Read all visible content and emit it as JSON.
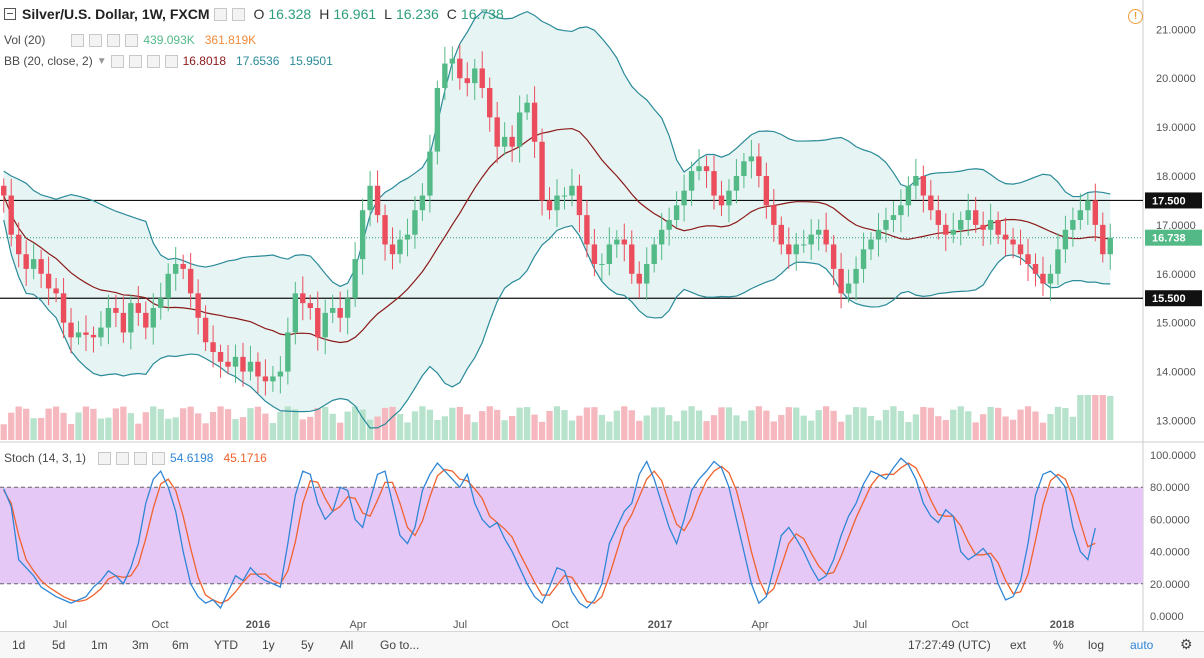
{
  "header": {
    "symbol": "Silver/U.S. Dollar, 1W, FXCM",
    "o_label": "O",
    "o_value": "16.328",
    "h_label": "H",
    "h_value": "16.961",
    "l_label": "L",
    "l_value": "16.236",
    "c_label": "C",
    "c_value": "16.738"
  },
  "vol_legend": {
    "label": "Vol (20)",
    "v1": "439.093K",
    "v2": "361.819K"
  },
  "bb_legend": {
    "label": "BB (20, close, 2)",
    "v1": "16.8018",
    "v2": "17.6536",
    "v3": "15.9501"
  },
  "stoch_legend": {
    "label": "Stoch (14, 3, 1)",
    "v1": "54.6198",
    "v2": "45.1716"
  },
  "alert_icon": "!",
  "colors": {
    "up": "#53b987",
    "down": "#eb4d5c",
    "bb": "#2a8a99",
    "bb_fill": "#e6f5f3",
    "basis": "#8b1a1a",
    "stoch_k": "#2f86d6",
    "stoch_d": "#f0622e",
    "stoch_fill": "#e6c8f7",
    "vol_ma": "#f08a3a"
  },
  "bottom_bar": {
    "ranges": [
      "1d",
      "5d",
      "1m",
      "3m",
      "6m",
      "YTD",
      "1y",
      "5y",
      "All"
    ],
    "goto": "Go to...",
    "time": "17:27:49 (UTC)",
    "opts": [
      "ext",
      "%",
      "log",
      "auto"
    ]
  },
  "chart_data": [
    {
      "type": "candlestick",
      "x_labels": [
        "Jul",
        "Oct",
        "2016",
        "Apr",
        "Jul",
        "Oct",
        "2017",
        "Apr",
        "Jul",
        "Oct",
        "2018"
      ],
      "y_ticks": [
        "21.0000",
        "20.0000",
        "19.0000",
        "18.0000",
        "17.0000",
        "16.0000",
        "15.0000",
        "14.0000",
        "13.0000"
      ],
      "y_range": [
        12.6,
        21.6
      ],
      "hlines": [
        {
          "value": 17.5,
          "label": "17.500"
        },
        {
          "value": 15.5,
          "label": "15.500"
        }
      ],
      "last_price_label": "16.738",
      "closes": [
        17.6,
        16.8,
        16.4,
        16.1,
        16.3,
        16.0,
        15.7,
        15.6,
        15.0,
        14.7,
        14.8,
        14.75,
        14.7,
        14.9,
        15.3,
        15.2,
        14.8,
        15.4,
        15.2,
        14.9,
        15.3,
        15.5,
        16.0,
        16.2,
        16.1,
        15.6,
        15.1,
        14.6,
        14.4,
        14.2,
        14.1,
        14.3,
        14.0,
        14.2,
        13.9,
        13.8,
        13.9,
        14.0,
        14.8,
        15.6,
        15.4,
        15.3,
        14.7,
        15.2,
        15.3,
        15.1,
        15.5,
        16.3,
        17.3,
        17.8,
        17.2,
        16.6,
        16.4,
        16.7,
        16.8,
        17.3,
        17.6,
        18.5,
        19.8,
        20.3,
        20.4,
        20.0,
        19.9,
        20.2,
        19.8,
        19.2,
        18.6,
        18.8,
        18.6,
        19.3,
        19.5,
        18.7,
        17.5,
        17.3,
        17.6,
        17.6,
        17.8,
        17.2,
        16.6,
        16.2,
        16.2,
        16.6,
        16.7,
        16.6,
        16.0,
        15.8,
        16.2,
        16.6,
        16.9,
        17.1,
        17.4,
        17.7,
        18.1,
        18.2,
        18.1,
        17.6,
        17.4,
        17.7,
        18.0,
        18.3,
        18.4,
        18.0,
        17.4,
        17.0,
        16.6,
        16.4,
        16.6,
        16.6,
        16.8,
        16.9,
        16.6,
        16.1,
        15.6,
        15.8,
        16.1,
        16.5,
        16.7,
        16.9,
        17.1,
        17.2,
        17.4,
        17.8,
        18.0,
        17.6,
        17.3,
        17.0,
        16.8,
        16.9,
        17.1,
        17.3,
        17.0,
        16.9,
        17.1,
        16.8,
        16.7,
        16.6,
        16.4,
        16.2,
        16.0,
        15.8,
        16.0,
        16.5,
        16.9,
        17.1,
        17.3,
        17.5,
        17.0,
        16.4,
        16.738
      ],
      "vol_ma_label": "Vol (20)",
      "vol_y_ticks": [],
      "stoch": {
        "y_ticks": [
          "100.0000",
          "80.0000",
          "60.0000",
          "40.0000",
          "20.0000",
          "0.0000"
        ],
        "band": [
          20,
          80
        ],
        "k": [
          79,
          68,
          35,
          30,
          25,
          18,
          15,
          12,
          10,
          8,
          10,
          12,
          18,
          22,
          28,
          25,
          20,
          30,
          45,
          70,
          85,
          90,
          80,
          65,
          40,
          20,
          12,
          8,
          10,
          5,
          15,
          25,
          22,
          30,
          25,
          22,
          20,
          18,
          45,
          75,
          90,
          88,
          70,
          60,
          65,
          80,
          78,
          60,
          55,
          72,
          88,
          90,
          70,
          50,
          45,
          55,
          78,
          88,
          95,
          90,
          85,
          80,
          88,
          70,
          60,
          55,
          58,
          48,
          40,
          30,
          20,
          12,
          8,
          18,
          30,
          28,
          15,
          8,
          5,
          10,
          20,
          45,
          55,
          65,
          70,
          88,
          96,
          85,
          70,
          55,
          45,
          60,
          78,
          85,
          90,
          96,
          92,
          80,
          60,
          40,
          20,
          8,
          12,
          30,
          50,
          55,
          48,
          40,
          30,
          22,
          25,
          35,
          50,
          62,
          70,
          82,
          90,
          88,
          85,
          92,
          98,
          94,
          85,
          70,
          62,
          58,
          66,
          62,
          40,
          35,
          38,
          42,
          36,
          20,
          10,
          12,
          22,
          45,
          75,
          88,
          90,
          86,
          80,
          55,
          40,
          35,
          54.6
        ],
        "d": [
          78,
          70,
          50,
          35,
          28,
          22,
          18,
          15,
          12,
          10,
          9,
          10,
          13,
          17,
          23,
          25,
          24,
          25,
          32,
          48,
          67,
          82,
          85,
          78,
          62,
          42,
          24,
          13,
          10,
          8,
          10,
          15,
          21,
          26,
          26,
          26,
          22,
          20,
          28,
          46,
          70,
          84,
          83,
          73,
          65,
          68,
          74,
          73,
          64,
          62,
          72,
          83,
          83,
          70,
          55,
          50,
          59,
          74,
          87,
          91,
          90,
          85,
          84,
          79,
          73,
          62,
          58,
          54,
          49,
          39,
          30,
          21,
          13,
          13,
          19,
          25,
          24,
          17,
          9,
          8,
          12,
          25,
          40,
          55,
          63,
          74,
          85,
          90,
          84,
          70,
          57,
          53,
          61,
          74,
          84,
          90,
          93,
          89,
          78,
          60,
          40,
          23,
          13,
          17,
          31,
          45,
          51,
          48,
          39,
          31,
          26,
          27,
          37,
          49,
          61,
          71,
          81,
          87,
          88,
          88,
          92,
          95,
          92,
          83,
          72,
          63,
          62,
          62,
          56,
          46,
          38,
          38,
          39,
          33,
          22,
          14,
          15,
          26,
          47,
          69,
          84,
          88,
          85,
          74,
          58,
          43,
          45.2
        ]
      }
    }
  ]
}
